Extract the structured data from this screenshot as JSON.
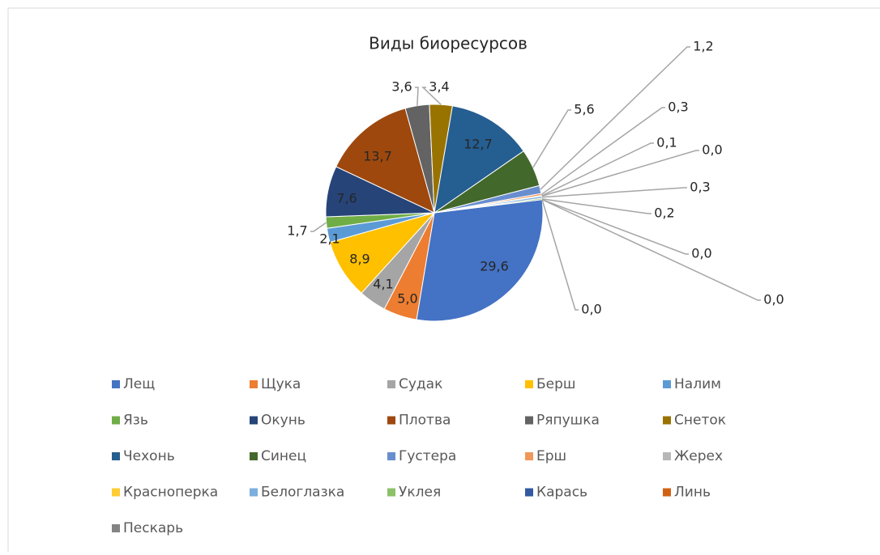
{
  "chart_data": {
    "type": "pie",
    "title": "Виды биоресурсов",
    "categories": [
      "Лещ",
      "Щука",
      "Судак",
      "Берш",
      "Налим",
      "Язь",
      "Окунь",
      "Плотва",
      "Ряпушка",
      "Снеток",
      "Чехонь",
      "Синец",
      "Густера",
      "Ерш",
      "Жерех",
      "Красноперка",
      "Белоглазка",
      "Уклея",
      "Карась",
      "Линь",
      "Пескарь"
    ],
    "values": [
      29.6,
      5.0,
      4.1,
      8.9,
      2.1,
      1.7,
      7.6,
      13.7,
      3.6,
      3.4,
      12.7,
      5.6,
      1.2,
      0.3,
      0.1,
      0.0,
      0.3,
      0.2,
      0.0,
      0.0,
      0.0
    ],
    "value_labels": [
      "29,6",
      "5,0",
      "4,1",
      "8,9",
      "2,1",
      "1,7",
      "7,6",
      "13,7",
      "3,6",
      "3,4",
      "12,7",
      "5,6",
      "1,2",
      "0,3",
      "0,1",
      "0,0",
      "0,3",
      "0,2",
      "0,0",
      "0,0",
      "0,0"
    ],
    "colors": [
      "#4472c4",
      "#ed7d31",
      "#a5a5a5",
      "#ffc000",
      "#5b9bd5",
      "#70ad47",
      "#264478",
      "#9e480e",
      "#636363",
      "#997300",
      "#255e91",
      "#43682b",
      "#698ed0",
      "#f1975a",
      "#b7b7b7",
      "#ffcd33",
      "#7cafdd",
      "#8cc168",
      "#335aa1",
      "#d26012",
      "#848484"
    ],
    "legend": "bottom"
  }
}
